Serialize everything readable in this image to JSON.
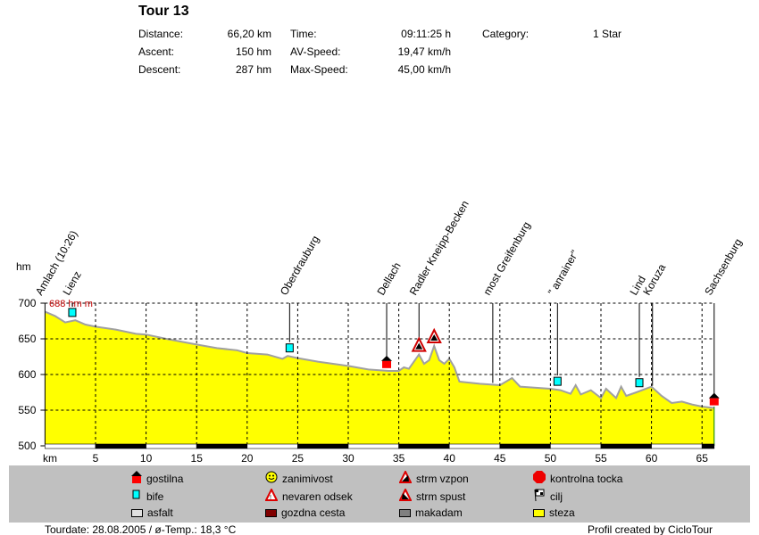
{
  "header": {
    "title": "Tour 13",
    "stats": [
      {
        "label": "Distance:",
        "value": "66,20 km"
      },
      {
        "label": "Ascent:",
        "value": "150 hm"
      },
      {
        "label": "Descent:",
        "value": "287 hm"
      },
      {
        "label": "Time:",
        "value": "09:11:25 h"
      },
      {
        "label": "AV-Speed:",
        "value": "19,47 km/h"
      },
      {
        "label": "Max-Speed:",
        "value": "45,00 km/h"
      },
      {
        "label": "Category:",
        "value": "1 Star"
      }
    ]
  },
  "chart_data": {
    "type": "area",
    "xlabel": "km",
    "ylabel": "hm",
    "xlim": [
      0,
      66.2
    ],
    "ylim": [
      500,
      700
    ],
    "xticks": [
      5,
      10,
      15,
      20,
      25,
      30,
      35,
      40,
      45,
      50,
      55,
      60,
      65
    ],
    "yticks": [
      500,
      550,
      600,
      650,
      700
    ],
    "max_annotation": "688 hm m",
    "profile": [
      [
        0,
        688
      ],
      [
        1,
        682
      ],
      [
        2,
        673
      ],
      [
        3,
        676
      ],
      [
        4,
        670
      ],
      [
        5,
        667
      ],
      [
        7,
        663
      ],
      [
        9,
        657
      ],
      [
        10,
        656
      ],
      [
        12,
        650
      ],
      [
        15,
        642
      ],
      [
        17,
        637
      ],
      [
        19,
        634
      ],
      [
        20,
        630
      ],
      [
        22,
        628
      ],
      [
        23.5,
        622
      ],
      [
        24,
        626
      ],
      [
        25,
        623
      ],
      [
        27,
        618
      ],
      [
        30,
        612
      ],
      [
        32,
        607
      ],
      [
        34,
        605
      ],
      [
        35,
        605
      ],
      [
        35.5,
        610
      ],
      [
        36,
        608
      ],
      [
        37,
        628
      ],
      [
        37.5,
        615
      ],
      [
        38,
        620
      ],
      [
        38.5,
        640
      ],
      [
        39,
        620
      ],
      [
        39.5,
        615
      ],
      [
        40,
        622
      ],
      [
        40.5,
        610
      ],
      [
        41,
        590
      ],
      [
        43,
        587
      ],
      [
        45,
        585
      ],
      [
        46.2,
        595
      ],
      [
        47,
        583
      ],
      [
        50,
        580
      ],
      [
        51,
        578
      ],
      [
        52,
        573
      ],
      [
        52.5,
        585
      ],
      [
        53,
        572
      ],
      [
        54,
        578
      ],
      [
        55,
        567
      ],
      [
        55.5,
        580
      ],
      [
        56.5,
        567
      ],
      [
        57,
        583
      ],
      [
        57.5,
        570
      ],
      [
        58.5,
        575
      ],
      [
        60,
        583
      ],
      [
        61,
        570
      ],
      [
        62,
        560
      ],
      [
        63,
        562
      ],
      [
        64,
        558
      ],
      [
        65,
        555
      ],
      [
        66.2,
        553
      ]
    ],
    "waypoints": [
      {
        "km": 0,
        "name": "Amlach (10:26)"
      },
      {
        "km": 2.7,
        "name": "Lienz",
        "icon": "bife"
      },
      {
        "km": 24.2,
        "name": "Oberdrauburg",
        "icon": "bife"
      },
      {
        "km": 33.8,
        "name": "Dellach",
        "icon": "gostilna"
      },
      {
        "km": 37,
        "name": "Radler Kneipp-Becken",
        "icon": "strm"
      },
      {
        "km": 44.3,
        "name": "most Greifenburg"
      },
      {
        "km": 50.7,
        "name": "\" anrainer\"",
        "icon": "bife"
      },
      {
        "km": 58.8,
        "name": "Lind",
        "icon": "bife"
      },
      {
        "km": 60.1,
        "name": "Koruza"
      },
      {
        "km": 66.2,
        "name": "Sachsenburg",
        "icon": "gostilna"
      }
    ],
    "extra_markers": [
      {
        "km": 38.5,
        "icon": "strm"
      }
    ],
    "surface": [
      [
        0,
        5,
        "asfalt"
      ],
      [
        5,
        10,
        "makadam"
      ],
      [
        10,
        15,
        "asfalt"
      ],
      [
        15,
        20,
        "makadam"
      ],
      [
        20,
        25,
        "asfalt"
      ],
      [
        25,
        30,
        "makadam"
      ],
      [
        30,
        35,
        "asfalt"
      ],
      [
        35,
        40,
        "makadam"
      ],
      [
        40,
        45,
        "asfalt"
      ],
      [
        45,
        50,
        "makadam"
      ],
      [
        50,
        55,
        "asfalt"
      ],
      [
        55,
        60,
        "makadam"
      ],
      [
        60,
        65,
        "asfalt"
      ],
      [
        65,
        66.2,
        "makadam"
      ]
    ]
  },
  "legend": [
    {
      "icon": "gostilna",
      "label": "gostilna"
    },
    {
      "icon": "zanimivost",
      "label": "zanimivost"
    },
    {
      "icon": "strm-vzpon",
      "label": "strm vzpon"
    },
    {
      "icon": "kontrolna-tocka",
      "label": "kontrolna tocka"
    },
    {
      "icon": "bife",
      "label": "bife"
    },
    {
      "icon": "nevaren-odsek",
      "label": "nevaren odsek"
    },
    {
      "icon": "strm-spust",
      "label": "strm spust"
    },
    {
      "icon": "cilj",
      "label": "cilj"
    },
    {
      "icon": "asfalt",
      "label": "asfalt",
      "color": "#e0e0e0"
    },
    {
      "icon": "gozdna-cesta",
      "label": "gozdna cesta",
      "color": "#800000"
    },
    {
      "icon": "makadam",
      "label": "makadam",
      "color": "#808080"
    },
    {
      "icon": "steza",
      "label": "steza",
      "color": "#ffff00"
    }
  ],
  "footer": {
    "left": "Tourdate: 28.08.2005  /  ø-Temp.: 18,3 °C",
    "right": "Profil created by CicloTour"
  }
}
